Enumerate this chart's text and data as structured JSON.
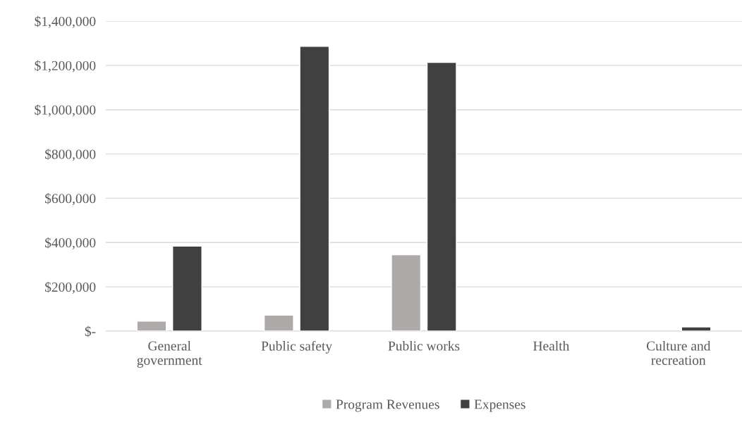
{
  "chart_data": {
    "type": "bar",
    "categories": [
      "General\ngovernment",
      "Public safety",
      "Public works",
      "Health",
      "Culture and\nrecreation"
    ],
    "series": [
      {
        "name": "Program Revenues",
        "color": "#aeaaaa",
        "values": [
          45000,
          72000,
          345000,
          null,
          null
        ]
      },
      {
        "name": "Expenses",
        "color": "#404040",
        "values": [
          384000,
          1286000,
          1214000,
          null,
          19000
        ]
      }
    ],
    "ylim": [
      0,
      1400000
    ],
    "yticks": [
      {
        "value": 0,
        "label": "$-"
      },
      {
        "value": 200000,
        "label": "$200,000"
      },
      {
        "value": 400000,
        "label": "$400,000"
      },
      {
        "value": 600000,
        "label": "$600,000"
      },
      {
        "value": 800000,
        "label": "$800,000"
      },
      {
        "value": 1000000,
        "label": "$1,000,000"
      },
      {
        "value": 1200000,
        "label": "$1,200,000"
      },
      {
        "value": 1400000,
        "label": "$1,400,000"
      }
    ],
    "grid": "y",
    "legend": "bottom"
  }
}
